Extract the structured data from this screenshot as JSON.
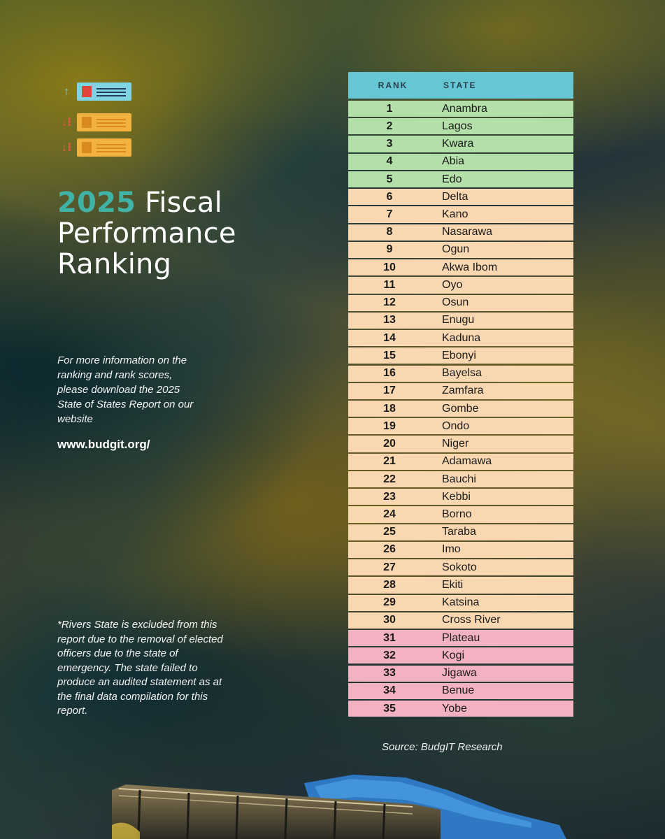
{
  "header": {
    "title_year": "2025",
    "title_rest_line1": "Fiscal",
    "title_line2": "Performance",
    "title_line3": "Ranking"
  },
  "info_text": "For more information on the ranking and rank scores, please download the 2025 State of States Report on our website",
  "website": "www.budgit.org/",
  "footnote": "*Rivers State is excluded from this report due to the removal of elected  officers due to the state of emergency. The state failed to produce an audited statement as at the final data compilation for this report.",
  "source": "Source: BudgIT Research",
  "colors": {
    "header": "#67c6d4",
    "top_group": "#b3dfa9",
    "middle_group": "#f9d8b1",
    "bottom_group": "#f3b2c1",
    "title_year": "#3fb3a6"
  },
  "icons": [
    "up-arrow-icon",
    "down-arrow-icon",
    "down-arrow-icon"
  ],
  "table": {
    "headers": {
      "rank": "RANK",
      "state": "STATE"
    },
    "rows": [
      {
        "rank": "1",
        "state": "Anambra",
        "group": "top"
      },
      {
        "rank": "2",
        "state": "Lagos",
        "group": "top"
      },
      {
        "rank": "3",
        "state": "Kwara",
        "group": "top"
      },
      {
        "rank": "4",
        "state": "Abia",
        "group": "top"
      },
      {
        "rank": "5",
        "state": "Edo",
        "group": "top"
      },
      {
        "rank": "6",
        "state": "Delta",
        "group": "middle"
      },
      {
        "rank": "7",
        "state": "Kano",
        "group": "middle"
      },
      {
        "rank": "8",
        "state": "Nasarawa",
        "group": "middle"
      },
      {
        "rank": "9",
        "state": "Ogun",
        "group": "middle"
      },
      {
        "rank": "10",
        "state": "Akwa Ibom",
        "group": "middle"
      },
      {
        "rank": "11",
        "state": "Oyo",
        "group": "middle"
      },
      {
        "rank": "12",
        "state": "Osun",
        "group": "middle"
      },
      {
        "rank": "13",
        "state": "Enugu",
        "group": "middle"
      },
      {
        "rank": "14",
        "state": "Kaduna",
        "group": "middle"
      },
      {
        "rank": "15",
        "state": "Ebonyi",
        "group": "middle"
      },
      {
        "rank": "16",
        "state": "Bayelsa",
        "group": "middle"
      },
      {
        "rank": "17",
        "state": "Zamfara",
        "group": "middle"
      },
      {
        "rank": "18",
        "state": "Gombe",
        "group": "middle"
      },
      {
        "rank": "19",
        "state": "Ondo",
        "group": "middle"
      },
      {
        "rank": "20",
        "state": "Niger",
        "group": "middle"
      },
      {
        "rank": "21",
        "state": "Adamawa",
        "group": "middle"
      },
      {
        "rank": "22",
        "state": "Bauchi",
        "group": "middle"
      },
      {
        "rank": "23",
        "state": "Kebbi",
        "group": "middle"
      },
      {
        "rank": "24",
        "state": "Borno",
        "group": "middle"
      },
      {
        "rank": "25",
        "state": "Taraba",
        "group": "middle"
      },
      {
        "rank": "26",
        "state": "Imo",
        "group": "middle"
      },
      {
        "rank": "27",
        "state": "Sokoto",
        "group": "middle"
      },
      {
        "rank": "28",
        "state": "Ekiti",
        "group": "middle"
      },
      {
        "rank": "29",
        "state": "Katsina",
        "group": "middle"
      },
      {
        "rank": "30",
        "state": "Cross River",
        "group": "middle"
      },
      {
        "rank": "31",
        "state": "Plateau",
        "group": "bottom"
      },
      {
        "rank": "32",
        "state": "Kogi",
        "group": "bottom"
      },
      {
        "rank": "33",
        "state": "Jigawa",
        "group": "bottom"
      },
      {
        "rank": "34",
        "state": "Benue",
        "group": "bottom"
      },
      {
        "rank": "35",
        "state": "Yobe",
        "group": "bottom"
      }
    ]
  }
}
